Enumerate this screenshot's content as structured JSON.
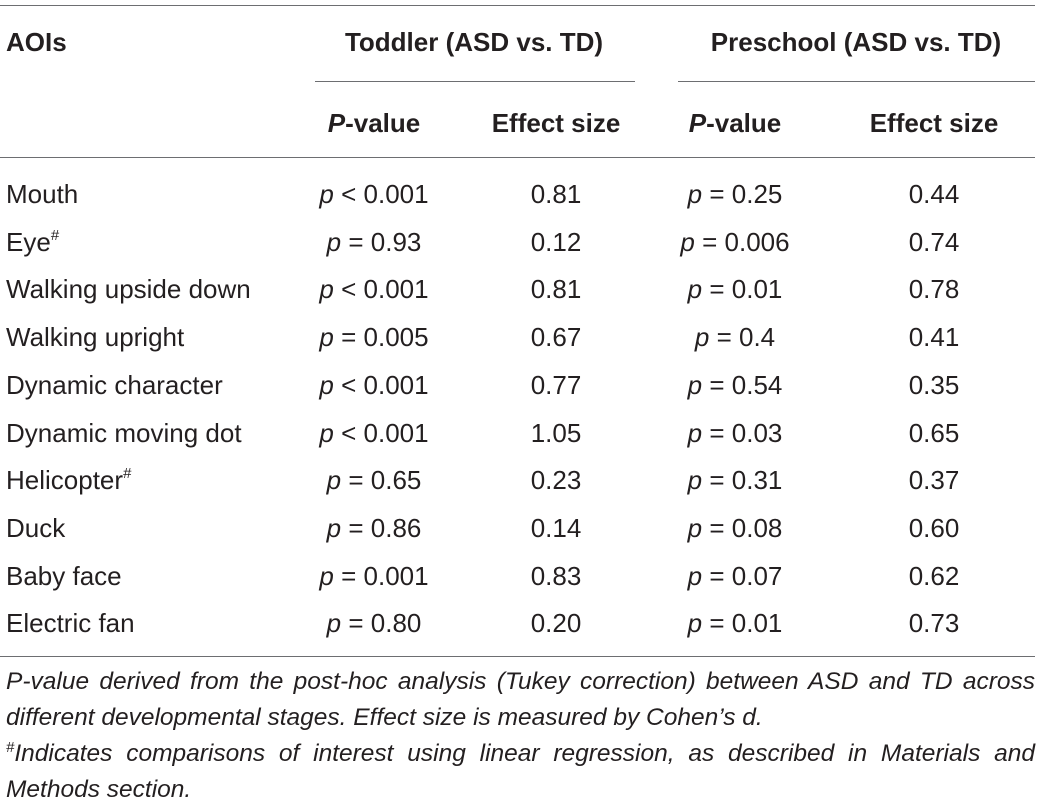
{
  "header": {
    "aois": "AOIs",
    "group1": "Toddler (ASD vs. TD)",
    "group2": "Preschool (ASD vs. TD)",
    "pvalue_italic": "P",
    "pvalue_rest": "-value",
    "effect_size": "Effect size"
  },
  "rows": [
    {
      "label": "Mouth",
      "sup": "",
      "t_p": "0.001",
      "t_op": "<",
      "t_es": "0.81",
      "p_p": "0.25",
      "p_op": "=",
      "p_es": "0.44"
    },
    {
      "label": "Eye",
      "sup": "#",
      "t_p": "0.93",
      "t_op": "=",
      "t_es": "0.12",
      "p_p": "0.006",
      "p_op": "=",
      "p_es": "0.74"
    },
    {
      "label": "Walking upside down",
      "sup": "",
      "t_p": "0.001",
      "t_op": "<",
      "t_es": "0.81",
      "p_p": "0.01",
      "p_op": "=",
      "p_es": "0.78"
    },
    {
      "label": "Walking upright",
      "sup": "",
      "t_p": "0.005",
      "t_op": "=",
      "t_es": "0.67",
      "p_p": "0.4",
      "p_op": "=",
      "p_es": "0.41"
    },
    {
      "label": "Dynamic character",
      "sup": "",
      "t_p": "0.001",
      "t_op": "<",
      "t_es": "0.77",
      "p_p": "0.54",
      "p_op": "=",
      "p_es": "0.35"
    },
    {
      "label": "Dynamic moving dot",
      "sup": "",
      "t_p": "0.001",
      "t_op": "<",
      "t_es": "1.05",
      "p_p": "0.03",
      "p_op": "=",
      "p_es": "0.65"
    },
    {
      "label": "Helicopter",
      "sup": "#",
      "t_p": "0.65",
      "t_op": "=",
      "t_es": "0.23",
      "p_p": "0.31",
      "p_op": "=",
      "p_es": "0.37"
    },
    {
      "label": "Duck",
      "sup": "",
      "t_p": "0.86",
      "t_op": "=",
      "t_es": "0.14",
      "p_p": "0.08",
      "p_op": "=",
      "p_es": "0.60"
    },
    {
      "label": "Baby face",
      "sup": "",
      "t_p": "0.001",
      "t_op": "=",
      "t_es": "0.83",
      "p_p": "0.07",
      "p_op": "=",
      "p_es": "0.62"
    },
    {
      "label": "Electric fan",
      "sup": "",
      "t_p": "0.80",
      "t_op": "=",
      "t_es": "0.20",
      "p_p": "0.01",
      "p_op": "=",
      "p_es": "0.73"
    }
  ],
  "footnote": {
    "line1": "P-value derived from the post-hoc analysis (Tukey correction) between ASD and TD across different developmental stages. Effect size is measured by Cohen’s d.",
    "mark": "#",
    "line2": "Indicates comparisons of interest using linear regression, as described in Materials and Methods section."
  }
}
